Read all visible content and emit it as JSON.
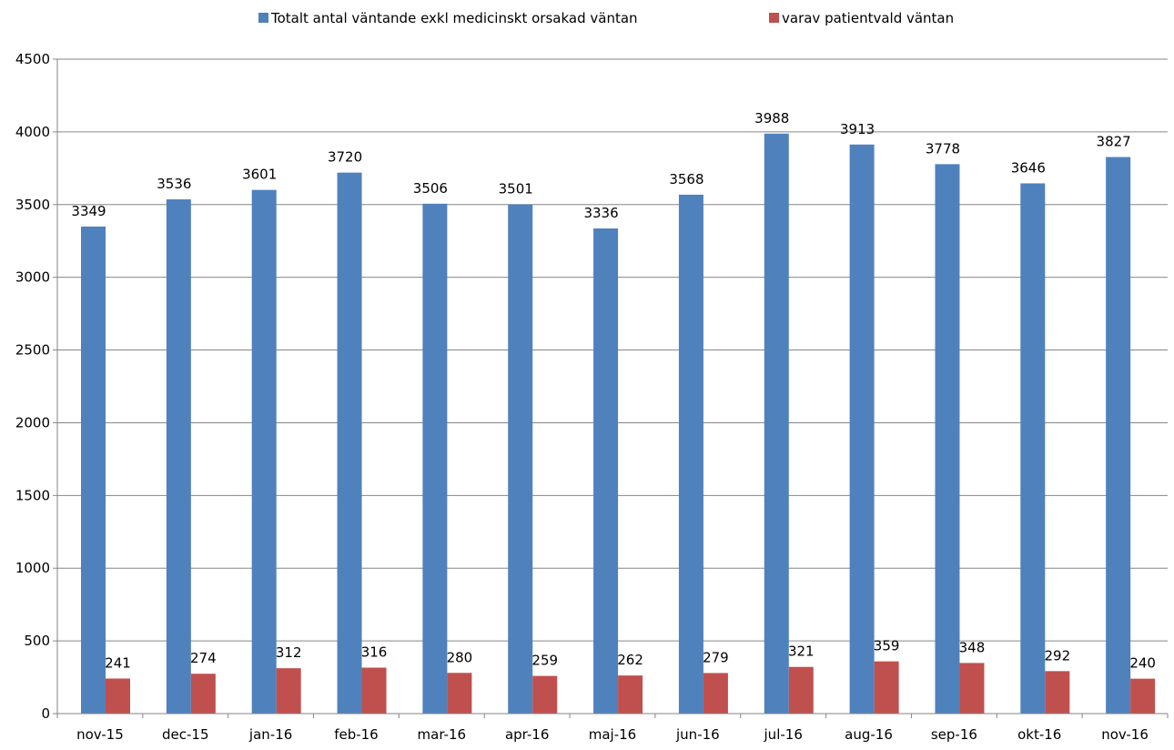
{
  "chart_data": {
    "type": "bar",
    "title": "",
    "xlabel": "",
    "ylabel": "",
    "categories": [
      "nov-15",
      "dec-15",
      "jan-16",
      "feb-16",
      "mar-16",
      "apr-16",
      "maj-16",
      "jun-16",
      "jul-16",
      "aug-16",
      "sep-16",
      "okt-16",
      "nov-16"
    ],
    "series": [
      {
        "name": "Totalt antal väntande exkl medicinskt orsakad väntan",
        "color": "#4F81BD",
        "values": [
          3349,
          3536,
          3601,
          3720,
          3506,
          3501,
          3336,
          3568,
          3988,
          3913,
          3778,
          3646,
          3827
        ]
      },
      {
        "name": "varav patientvald väntan",
        "color": "#C0504D",
        "values": [
          241,
          274,
          312,
          316,
          280,
          259,
          262,
          279,
          321,
          359,
          348,
          292,
          240
        ]
      }
    ],
    "ylim": [
      0,
      4500
    ],
    "yticks": [
      0,
      500,
      1000,
      1500,
      2000,
      2500,
      3000,
      3500,
      4000,
      4500
    ],
    "grid": true,
    "legend_position": "top"
  }
}
